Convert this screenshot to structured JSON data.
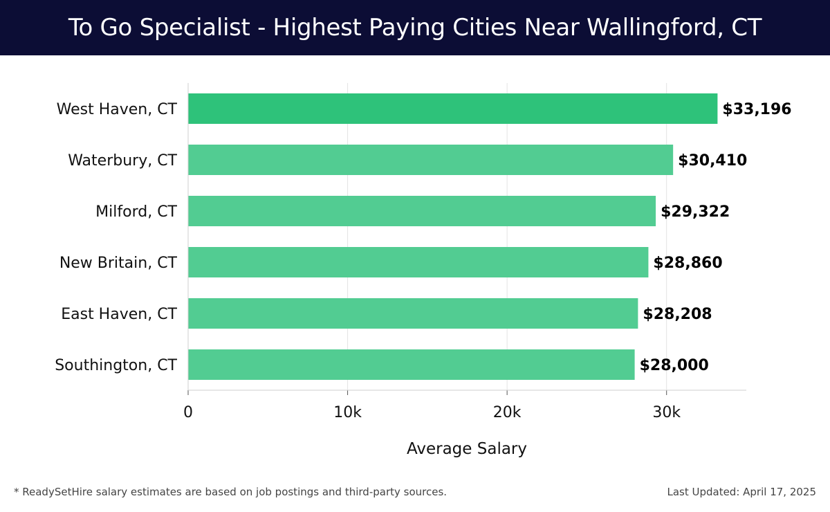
{
  "header": {
    "title": "To Go Specialist - Highest Paying Cities Near Wallingford, CT"
  },
  "chart_data": {
    "type": "bar",
    "orientation": "horizontal",
    "categories": [
      "West Haven, CT",
      "Waterbury, CT",
      "Milford, CT",
      "New Britain, CT",
      "East Haven, CT",
      "Southington, CT"
    ],
    "values": [
      33196,
      30410,
      29322,
      28860,
      28208,
      28000
    ],
    "value_labels": [
      "$33,196",
      "$30,410",
      "$29,322",
      "$28,860",
      "$28,208",
      "$28,000"
    ],
    "xlabel": "Average Salary",
    "ylabel": "",
    "xlim": [
      0,
      35000
    ],
    "ticks": [
      0,
      10000,
      20000,
      30000
    ],
    "tick_labels": [
      "0",
      "10k",
      "20k",
      "30k"
    ],
    "grid": true,
    "colors": {
      "top_bar": "#2ec27a",
      "bar": "#52cc92"
    }
  },
  "footer": {
    "note": "* ReadySetHire salary estimates are based on job postings and third-party sources.",
    "updated": "Last Updated: April 17, 2025"
  }
}
